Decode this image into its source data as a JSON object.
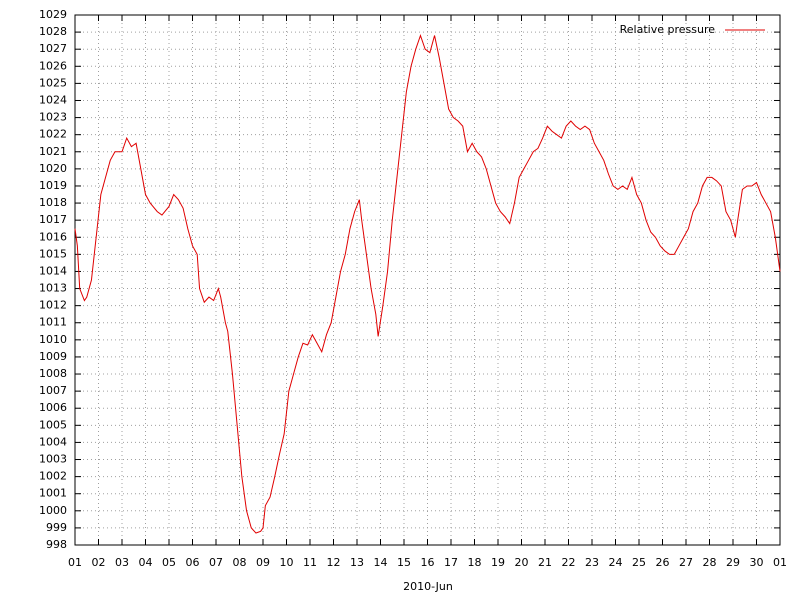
{
  "chart_data": {
    "type": "line",
    "xlabel": "2010-Jun",
    "xlim": [
      0,
      30
    ],
    "xticks": [
      {
        "value": 0,
        "label": "01"
      },
      {
        "value": 1,
        "label": "02"
      },
      {
        "value": 2,
        "label": "03"
      },
      {
        "value": 3,
        "label": "04"
      },
      {
        "value": 4,
        "label": "05"
      },
      {
        "value": 5,
        "label": "06"
      },
      {
        "value": 6,
        "label": "07"
      },
      {
        "value": 7,
        "label": "08"
      },
      {
        "value": 8,
        "label": "09"
      },
      {
        "value": 9,
        "label": "10"
      },
      {
        "value": 10,
        "label": "11"
      },
      {
        "value": 11,
        "label": "12"
      },
      {
        "value": 12,
        "label": "13"
      },
      {
        "value": 13,
        "label": "14"
      },
      {
        "value": 14,
        "label": "15"
      },
      {
        "value": 15,
        "label": "16"
      },
      {
        "value": 16,
        "label": "17"
      },
      {
        "value": 17,
        "label": "18"
      },
      {
        "value": 18,
        "label": "19"
      },
      {
        "value": 19,
        "label": "20"
      },
      {
        "value": 20,
        "label": "21"
      },
      {
        "value": 21,
        "label": "22"
      },
      {
        "value": 22,
        "label": "23"
      },
      {
        "value": 23,
        "label": "24"
      },
      {
        "value": 24,
        "label": "25"
      },
      {
        "value": 25,
        "label": "26"
      },
      {
        "value": 26,
        "label": "27"
      },
      {
        "value": 27,
        "label": "28"
      },
      {
        "value": 28,
        "label": "29"
      },
      {
        "value": 29,
        "label": "30"
      },
      {
        "value": 30,
        "label": "01"
      }
    ],
    "ylim": [
      998,
      1029
    ],
    "yticks": [
      998,
      999,
      1000,
      1001,
      1002,
      1003,
      1004,
      1005,
      1006,
      1007,
      1008,
      1009,
      1010,
      1011,
      1012,
      1013,
      1014,
      1015,
      1016,
      1017,
      1018,
      1019,
      1020,
      1021,
      1022,
      1023,
      1024,
      1025,
      1026,
      1027,
      1028,
      1029
    ],
    "grid": true,
    "legend": "top-right",
    "x": [
      0.0,
      0.1,
      0.2,
      0.4,
      0.5,
      0.7,
      0.9,
      1.1,
      1.3,
      1.5,
      1.7,
      2.0,
      2.2,
      2.4,
      2.6,
      2.8,
      3.0,
      3.2,
      3.5,
      3.7,
      4.0,
      4.2,
      4.4,
      4.6,
      4.8,
      5.0,
      5.2,
      5.3,
      5.5,
      5.7,
      5.9,
      6.1,
      6.2,
      6.4,
      6.5,
      6.7,
      6.9,
      7.1,
      7.3,
      7.5,
      7.7,
      7.9,
      8.0,
      8.1,
      8.3,
      8.5,
      8.7,
      8.9,
      9.1,
      9.3,
      9.5,
      9.7,
      9.9,
      10.1,
      10.3,
      10.5,
      10.7,
      10.9,
      11.1,
      11.3,
      11.5,
      11.7,
      11.9,
      12.1,
      12.2,
      12.4,
      12.6,
      12.8,
      12.9,
      13.1,
      13.3,
      13.5,
      13.7,
      13.9,
      14.1,
      14.3,
      14.5,
      14.7,
      14.9,
      15.1,
      15.3,
      15.5,
      15.7,
      15.9,
      16.1,
      16.3,
      16.5,
      16.7,
      16.9,
      17.1,
      17.3,
      17.5,
      17.7,
      17.9,
      18.1,
      18.3,
      18.5,
      18.7,
      18.9,
      19.1,
      19.3,
      19.5,
      19.7,
      19.9,
      20.1,
      20.3,
      20.5,
      20.7,
      20.9,
      21.1,
      21.3,
      21.5,
      21.7,
      21.9,
      22.1,
      22.3,
      22.5,
      22.7,
      22.9,
      23.1,
      23.3,
      23.5,
      23.7,
      23.9,
      24.1,
      24.3,
      24.5,
      24.7,
      24.9,
      25.1,
      25.3,
      25.5,
      25.7,
      25.9,
      26.1,
      26.3,
      26.5,
      26.7,
      26.9,
      27.1,
      27.3,
      27.5,
      27.7,
      27.9,
      28.1,
      28.2,
      28.4,
      28.6,
      28.8,
      29.0,
      29.2,
      29.4,
      29.6,
      29.8,
      29.9,
      30.0
    ],
    "series": [
      {
        "name": "Relative pressure",
        "color": "#e00000",
        "values": [
          1016.5,
          1015.5,
          1013,
          1012.3,
          1012.5,
          1013.5,
          1016,
          1018.5,
          1019.5,
          1020.5,
          1021,
          1021,
          1021.8,
          1021.3,
          1021.5,
          1020,
          1018.5,
          1018,
          1017.5,
          1017.3,
          1017.8,
          1018.5,
          1018.2,
          1017.7,
          1016.5,
          1015.5,
          1015,
          1013,
          1012.2,
          1012.5,
          1012.3,
          1013,
          1012.5,
          1011,
          1010.5,
          1008,
          1005,
          1002,
          1000,
          999,
          998.7,
          998.8,
          999,
          1000.3,
          1000.8,
          1002,
          1003.3,
          1004.5,
          1007,
          1008,
          1009,
          1009.8,
          1009.7,
          1010.3,
          1009.8,
          1009.3,
          1010.3,
          1011,
          1012.5,
          1014,
          1015,
          1016.5,
          1017.5,
          1018.2,
          1017,
          1015,
          1013,
          1011.5,
          1010.2,
          1012,
          1014,
          1017,
          1019.5,
          1022,
          1024.5,
          1026,
          1027,
          1027.8,
          1027,
          1026.8,
          1027.8,
          1026.5,
          1025,
          1023.5,
          1023,
          1022.8,
          1022.5,
          1021,
          1021.5,
          1021,
          1020.7,
          1020,
          1019,
          1018,
          1017.5,
          1017.2,
          1016.8,
          1018,
          1019.5,
          1020,
          1020.5,
          1021,
          1021.2,
          1021.8,
          1022.5,
          1022.2,
          1022,
          1021.8,
          1022.5,
          1022.8,
          1022.5,
          1022.3,
          1022.5,
          1022.3,
          1021.5,
          1021,
          1020.5,
          1019.7,
          1019,
          1018.8,
          1019,
          1018.8,
          1019.5,
          1018.5,
          1018,
          1017,
          1016.3,
          1016,
          1015.5,
          1015.2,
          1015,
          1015,
          1015.5,
          1016,
          1016.5,
          1017.5,
          1018,
          1019,
          1019.5,
          1019.5,
          1019.3,
          1019,
          1017.5,
          1017,
          1016,
          1017,
          1018.8,
          1019,
          1019,
          1019.2,
          1018.5,
          1018,
          1017.5,
          1016,
          1015,
          1014
        ]
      }
    ]
  }
}
